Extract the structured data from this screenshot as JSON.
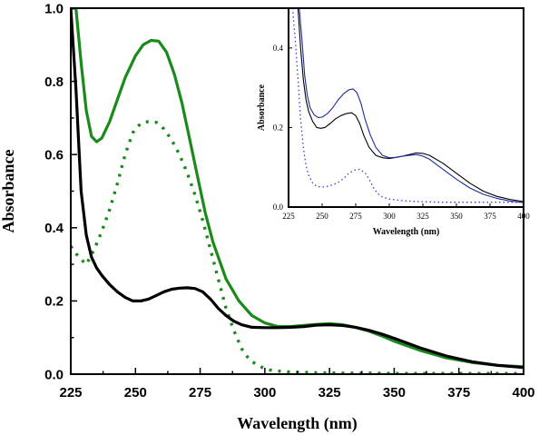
{
  "chart_data": [
    {
      "type": "line",
      "title": "",
      "xlabel": "Wavelength (nm)",
      "ylabel": "Absorbance",
      "xlim": [
        225,
        400
      ],
      "ylim": [
        0.0,
        1.0
      ],
      "xticks": [
        "225",
        "250",
        "275",
        "300",
        "325",
        "350",
        "375",
        "400"
      ],
      "yticks": [
        "0.0",
        "0.2",
        "0.4",
        "0.6",
        "0.8",
        "1.0"
      ],
      "series": [
        {
          "color": "#1a8a1a",
          "style": "solid",
          "x": [
            225,
            227,
            229,
            231,
            233,
            235,
            237,
            240,
            243,
            246,
            250,
            253,
            256,
            259,
            262,
            265,
            268,
            271,
            274,
            277,
            280,
            285,
            290,
            295,
            300,
            305,
            310,
            315,
            320,
            325,
            330,
            335,
            340,
            345,
            350,
            360,
            370,
            380,
            390,
            400
          ],
          "y": [
            1.0,
            1.0,
            0.85,
            0.72,
            0.65,
            0.635,
            0.645,
            0.69,
            0.75,
            0.81,
            0.87,
            0.9,
            0.912,
            0.91,
            0.88,
            0.82,
            0.74,
            0.64,
            0.54,
            0.44,
            0.36,
            0.26,
            0.2,
            0.16,
            0.14,
            0.13,
            0.13,
            0.133,
            0.136,
            0.138,
            0.135,
            0.128,
            0.118,
            0.105,
            0.09,
            0.065,
            0.045,
            0.032,
            0.024,
            0.02
          ]
        },
        {
          "color": "#1a8a1a",
          "style": "dotted",
          "x": [
            225,
            228,
            231,
            234,
            237,
            240,
            243,
            246,
            249,
            252,
            255,
            258,
            261,
            264,
            267,
            270,
            273,
            276,
            279,
            282,
            285,
            288,
            291,
            294,
            297,
            300,
            303,
            306,
            310,
            320,
            330,
            340,
            350,
            375,
            400
          ],
          "y": [
            0.35,
            0.32,
            0.3,
            0.34,
            0.39,
            0.45,
            0.52,
            0.6,
            0.66,
            0.685,
            0.69,
            0.688,
            0.67,
            0.64,
            0.6,
            0.55,
            0.49,
            0.42,
            0.34,
            0.26,
            0.18,
            0.12,
            0.07,
            0.04,
            0.025,
            0.015,
            0.01,
            0.008,
            0.006,
            0.004,
            0.003,
            0.003,
            0.002,
            0.002,
            0.002
          ]
        },
        {
          "color": "#000000",
          "style": "solid",
          "x": [
            225,
            227,
            229,
            231,
            233,
            235,
            237,
            240,
            243,
            246,
            249,
            252,
            255,
            258,
            261,
            264,
            267,
            270,
            273,
            276,
            279,
            282,
            285,
            288,
            291,
            295,
            300,
            305,
            310,
            315,
            320,
            325,
            330,
            335,
            340,
            345,
            350,
            360,
            370,
            380,
            390,
            400
          ],
          "y": [
            1.0,
            0.78,
            0.5,
            0.38,
            0.32,
            0.29,
            0.27,
            0.245,
            0.225,
            0.21,
            0.2,
            0.2,
            0.205,
            0.215,
            0.225,
            0.232,
            0.235,
            0.236,
            0.234,
            0.225,
            0.205,
            0.18,
            0.16,
            0.145,
            0.135,
            0.128,
            0.127,
            0.127,
            0.128,
            0.13,
            0.134,
            0.135,
            0.133,
            0.128,
            0.12,
            0.11,
            0.098,
            0.072,
            0.05,
            0.034,
            0.024,
            0.018
          ]
        }
      ]
    },
    {
      "type": "line",
      "title": "",
      "xlabel": "Wavelength (nm)",
      "ylabel": "Absorbance",
      "xlim": [
        225,
        400
      ],
      "ylim": [
        0.0,
        0.5
      ],
      "xticks": [
        "225",
        "250",
        "275",
        "300",
        "325",
        "350",
        "375",
        "400"
      ],
      "yticks": [
        "0.0",
        "0.2",
        "0.4"
      ],
      "series": [
        {
          "color": "#000000",
          "style": "solid",
          "x": [
            232,
            234,
            236,
            238,
            240,
            243,
            246,
            249,
            252,
            256,
            260,
            264,
            268,
            272,
            275,
            278,
            281,
            285,
            290,
            295,
            300,
            305,
            310,
            315,
            320,
            325,
            330,
            340,
            350,
            360,
            370,
            380,
            390,
            400
          ],
          "y": [
            0.5,
            0.4,
            0.32,
            0.27,
            0.24,
            0.215,
            0.2,
            0.198,
            0.2,
            0.21,
            0.222,
            0.23,
            0.235,
            0.237,
            0.23,
            0.21,
            0.18,
            0.15,
            0.13,
            0.124,
            0.122,
            0.125,
            0.128,
            0.132,
            0.136,
            0.135,
            0.13,
            0.11,
            0.085,
            0.06,
            0.04,
            0.027,
            0.019,
            0.014
          ]
        },
        {
          "color": "#1f2a9e",
          "style": "solid",
          "x": [
            233,
            235,
            237,
            239,
            241,
            244,
            247,
            250,
            254,
            258,
            262,
            266,
            270,
            273,
            276,
            279,
            282,
            286,
            290,
            295,
            300,
            305,
            310,
            315,
            320,
            325,
            330,
            340,
            350,
            360,
            370,
            380,
            390,
            400
          ],
          "y": [
            0.5,
            0.42,
            0.33,
            0.28,
            0.25,
            0.232,
            0.225,
            0.226,
            0.235,
            0.25,
            0.27,
            0.285,
            0.295,
            0.297,
            0.287,
            0.26,
            0.22,
            0.18,
            0.15,
            0.13,
            0.124,
            0.125,
            0.128,
            0.13,
            0.132,
            0.128,
            0.12,
            0.095,
            0.07,
            0.048,
            0.032,
            0.022,
            0.015,
            0.011
          ]
        },
        {
          "color": "#3b3bd6",
          "style": "dotted",
          "x": [
            228,
            230,
            232,
            234,
            236,
            238,
            240,
            243,
            246,
            250,
            254,
            258,
            262,
            266,
            270,
            274,
            278,
            282,
            285,
            288,
            291,
            295,
            300,
            310,
            320,
            340,
            360,
            380,
            400
          ],
          "y": [
            0.5,
            0.42,
            0.32,
            0.22,
            0.15,
            0.105,
            0.08,
            0.06,
            0.052,
            0.05,
            0.052,
            0.056,
            0.062,
            0.072,
            0.085,
            0.093,
            0.095,
            0.086,
            0.07,
            0.05,
            0.035,
            0.025,
            0.02,
            0.016,
            0.014,
            0.012,
            0.012,
            0.012,
            0.012
          ]
        }
      ]
    }
  ]
}
